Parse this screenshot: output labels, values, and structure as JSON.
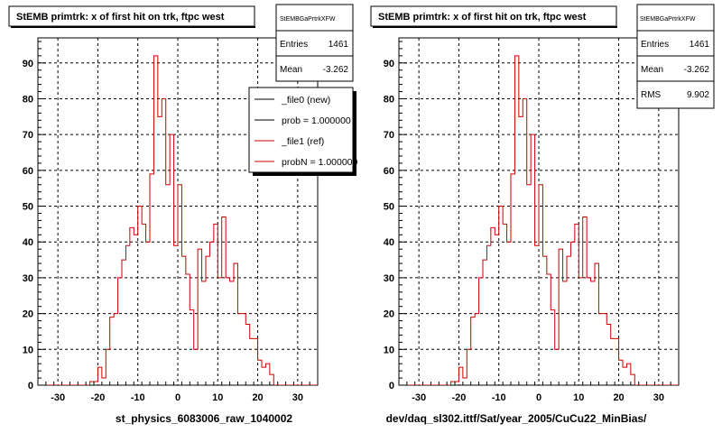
{
  "chart_data": [
    {
      "type": "histogram",
      "title": "StEMB primtrk: x of first hit on trk, ftpc west",
      "xlabel": "st_physics_6083006_raw_1040002",
      "ylabel": "",
      "xlim": [
        -35,
        35
      ],
      "ylim": [
        0,
        97
      ],
      "xticks": [
        -30,
        -20,
        -10,
        0,
        10,
        20,
        30
      ],
      "yticks": [
        0,
        10,
        20,
        30,
        40,
        50,
        60,
        70,
        80,
        90
      ],
      "grid": true,
      "bin_edges_start": -35,
      "bin_width": 1,
      "series": [
        {
          "color": "#cc0000",
          "values": [
            0,
            0,
            0,
            0,
            0,
            0,
            0,
            0,
            0,
            0,
            0,
            0,
            0,
            1,
            1,
            5,
            2,
            10,
            19,
            20,
            30,
            35,
            39,
            44,
            42,
            50,
            45,
            40,
            59,
            92,
            75,
            80,
            56,
            70,
            39,
            56,
            36,
            31,
            21,
            10,
            38,
            29,
            36,
            40,
            45,
            30,
            47,
            30,
            29,
            34,
            20,
            20,
            17,
            13,
            13,
            7,
            5,
            6,
            3,
            0,
            0,
            0,
            0,
            0,
            0,
            0,
            0,
            0,
            0,
            0
          ]
        }
      ],
      "stats": {
        "name": "StEMBGaPrtrkXFW",
        "entries_label": "Entries",
        "entries": "1461",
        "mean_label": "Mean",
        "mean": "-3.262"
      },
      "legend": {
        "placement": "top-right",
        "entries": [
          {
            "label": "_file0 (new)",
            "color": "#000000"
          },
          {
            "label": "prob = 1.000000",
            "color": "#000000"
          },
          {
            "label": "_file1 (ref)",
            "color": "#cc0000"
          },
          {
            "label": "probN = 1.000000",
            "color": "#cc0000"
          }
        ]
      }
    },
    {
      "type": "histogram",
      "title": "StEMB primtrk: x of first hit on trk, ftpc west",
      "xlabel": "dev/daq_sl302.ittf/Sat/year_2005/CuCu22_MinBias/",
      "ylabel": "",
      "xlim": [
        -35,
        35
      ],
      "ylim": [
        0,
        97
      ],
      "xticks": [
        -30,
        -20,
        -10,
        0,
        10,
        20,
        30
      ],
      "yticks": [
        0,
        10,
        20,
        30,
        40,
        50,
        60,
        70,
        80,
        90
      ],
      "grid": true,
      "bin_edges_start": -35,
      "bin_width": 1,
      "series": [
        {
          "color": "#cc0000",
          "values": [
            0,
            0,
            0,
            0,
            0,
            0,
            0,
            0,
            0,
            0,
            0,
            0,
            0,
            1,
            1,
            5,
            2,
            10,
            19,
            20,
            30,
            35,
            39,
            44,
            42,
            50,
            45,
            40,
            59,
            92,
            75,
            80,
            56,
            70,
            39,
            56,
            36,
            31,
            21,
            10,
            38,
            29,
            36,
            40,
            45,
            30,
            47,
            30,
            29,
            34,
            20,
            20,
            17,
            13,
            13,
            7,
            5,
            6,
            3,
            0,
            0,
            0,
            0,
            0,
            0,
            0,
            0,
            0,
            0,
            0
          ]
        }
      ],
      "stats": {
        "name": "StEMBGaPrtrkXFW",
        "entries_label": "Entries",
        "entries": "1461",
        "mean_label": "Mean",
        "mean": "-3.262",
        "rms_label": "RMS",
        "rms": "9.902"
      },
      "legend": null
    }
  ]
}
